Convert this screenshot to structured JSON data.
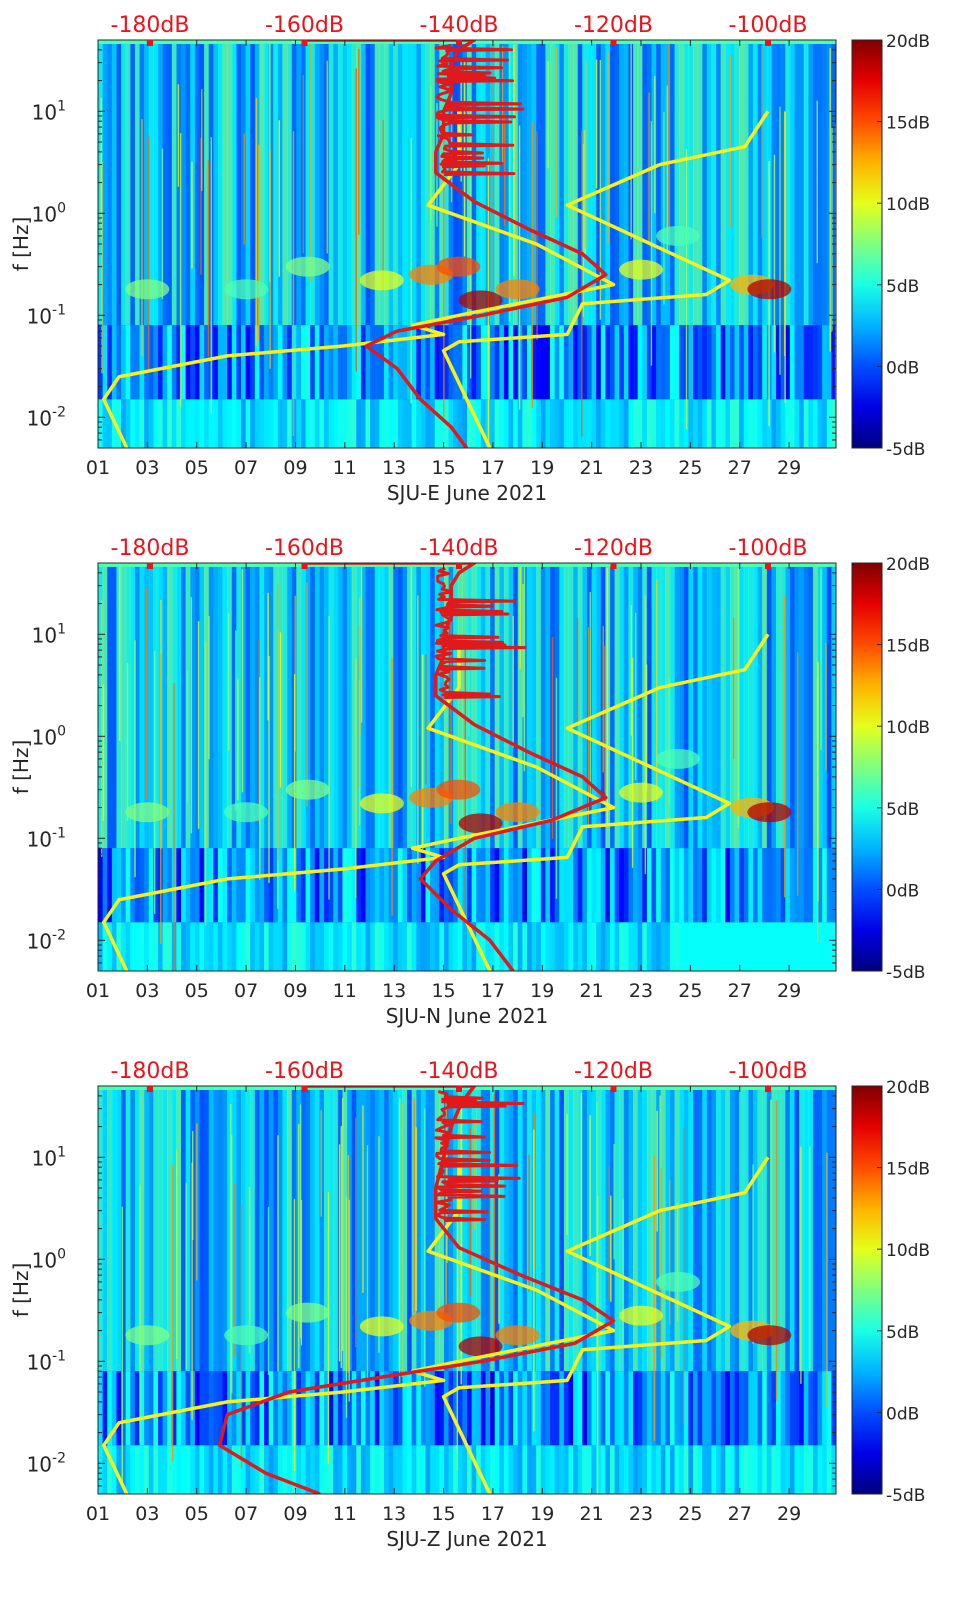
{
  "figure": {
    "description_free": true
  },
  "chart_data": [
    {
      "type": "heatmap",
      "station": "SJU-E",
      "xlabel": "SJU-E June 2021",
      "ylabel": "f [Hz]",
      "x_ticks": [
        "01",
        "03",
        "05",
        "07",
        "09",
        "11",
        "13",
        "15",
        "17",
        "19",
        "21",
        "23",
        "25",
        "27",
        "29"
      ],
      "x_range_days": [
        1,
        30.9
      ],
      "y_scale": "log",
      "y_range_hz": [
        0.005,
        50
      ],
      "y_ticks": [
        {
          "value": 0.01,
          "base": "10",
          "exp": "-2"
        },
        {
          "value": 0.1,
          "base": "10",
          "exp": "-1"
        },
        {
          "value": 1,
          "base": "10",
          "exp": "0"
        },
        {
          "value": 10,
          "base": "10",
          "exp": "1"
        }
      ],
      "top_axis_labels": [
        "-180dB",
        "-160dB",
        "-140dB",
        "-120dB",
        "-100dB"
      ],
      "top_axis_color": "#e8141b",
      "colorbar_labels": [
        "20dB",
        "15dB",
        "10dB",
        "5dB",
        "0dB",
        "-5dB"
      ],
      "colorbar_range_db": [
        -5,
        20
      ],
      "yellow_curve": {
        "name": "noise model bounds",
        "color": "#f5f01e",
        "low_model": [
          [
            -140,
            10
          ],
          [
            -140,
            3
          ],
          [
            -144,
            1.2
          ],
          [
            -130,
            0.5
          ],
          [
            -120,
            0.2
          ],
          [
            -140,
            0.1
          ],
          [
            -146,
            0.08
          ],
          [
            -142,
            0.065
          ],
          [
            -155,
            0.05
          ],
          [
            -170,
            0.04
          ],
          [
            -184,
            0.025
          ],
          [
            -186,
            0.015
          ],
          [
            -183,
            0.005
          ]
        ],
        "high_model": [
          [
            -100,
            10
          ],
          [
            -103,
            4.5
          ],
          [
            -114,
            3
          ],
          [
            -126,
            1.2
          ],
          [
            -105,
            0.22
          ],
          [
            -108,
            0.16
          ],
          [
            -124,
            0.13
          ],
          [
            -126,
            0.065
          ],
          [
            -140,
            0.055
          ],
          [
            -142,
            0.045
          ],
          [
            -136,
            0.005
          ]
        ]
      },
      "red_curve": {
        "name": "median PSD",
        "color": "#e0191c",
        "points": [
          [
            -160,
            50
          ],
          [
            -138,
            50
          ],
          [
            -140,
            40
          ],
          [
            -141,
            30
          ],
          [
            -141,
            20
          ],
          [
            -141,
            15
          ],
          [
            -142,
            10
          ],
          [
            -142,
            6
          ],
          [
            -143,
            4
          ],
          [
            -143,
            2.5
          ],
          [
            -138,
            1.3
          ],
          [
            -131,
            0.7
          ],
          [
            -124,
            0.4
          ],
          [
            -121,
            0.25
          ],
          [
            -126,
            0.15
          ],
          [
            -137,
            0.1
          ],
          [
            -148,
            0.07
          ],
          [
            -152,
            0.05
          ],
          [
            -148,
            0.03
          ],
          [
            -145,
            0.015
          ],
          [
            -141,
            0.008
          ],
          [
            -139,
            0.005
          ]
        ]
      }
    },
    {
      "type": "heatmap",
      "station": "SJU-N",
      "xlabel": "SJU-N June 2021",
      "ylabel": "f [Hz]",
      "x_ticks": [
        "01",
        "03",
        "05",
        "07",
        "09",
        "11",
        "13",
        "15",
        "17",
        "19",
        "21",
        "23",
        "25",
        "27",
        "29"
      ],
      "x_range_days": [
        1,
        30.9
      ],
      "y_scale": "log",
      "y_range_hz": [
        0.005,
        50
      ],
      "y_ticks": [
        {
          "value": 0.01,
          "base": "10",
          "exp": "-2"
        },
        {
          "value": 0.1,
          "base": "10",
          "exp": "-1"
        },
        {
          "value": 1,
          "base": "10",
          "exp": "0"
        },
        {
          "value": 10,
          "base": "10",
          "exp": "1"
        }
      ],
      "top_axis_labels": [
        "-180dB",
        "-160dB",
        "-140dB",
        "-120dB",
        "-100dB"
      ],
      "top_axis_color": "#e8141b",
      "colorbar_labels": [
        "20dB",
        "15dB",
        "10dB",
        "5dB",
        "0dB",
        "-5dB"
      ],
      "colorbar_range_db": [
        -5,
        20
      ],
      "yellow_curve": {
        "name": "noise model bounds",
        "color": "#f5f01e",
        "low_model": [
          [
            -140,
            10
          ],
          [
            -140,
            3
          ],
          [
            -144,
            1.2
          ],
          [
            -130,
            0.5
          ],
          [
            -120,
            0.2
          ],
          [
            -140,
            0.1
          ],
          [
            -146,
            0.08
          ],
          [
            -142,
            0.065
          ],
          [
            -155,
            0.05
          ],
          [
            -170,
            0.04
          ],
          [
            -184,
            0.025
          ],
          [
            -186,
            0.015
          ],
          [
            -183,
            0.005
          ]
        ],
        "high_model": [
          [
            -100,
            10
          ],
          [
            -103,
            4.5
          ],
          [
            -114,
            3
          ],
          [
            -126,
            1.2
          ],
          [
            -105,
            0.22
          ],
          [
            -108,
            0.16
          ],
          [
            -124,
            0.13
          ],
          [
            -126,
            0.065
          ],
          [
            -140,
            0.055
          ],
          [
            -142,
            0.045
          ],
          [
            -136,
            0.005
          ]
        ]
      },
      "red_curve": {
        "name": "median PSD",
        "color": "#e0191c",
        "points": [
          [
            -160,
            50
          ],
          [
            -138,
            50
          ],
          [
            -140,
            40
          ],
          [
            -141,
            30
          ],
          [
            -141,
            20
          ],
          [
            -141,
            15
          ],
          [
            -142,
            10
          ],
          [
            -142,
            6
          ],
          [
            -143,
            4
          ],
          [
            -143,
            2.5
          ],
          [
            -138,
            1.3
          ],
          [
            -131,
            0.7
          ],
          [
            -124,
            0.4
          ],
          [
            -121,
            0.25
          ],
          [
            -128,
            0.15
          ],
          [
            -138,
            0.1
          ],
          [
            -143,
            0.06
          ],
          [
            -145,
            0.04
          ],
          [
            -141,
            0.02
          ],
          [
            -136,
            0.01
          ],
          [
            -133,
            0.005
          ]
        ]
      }
    },
    {
      "type": "heatmap",
      "station": "SJU-Z",
      "xlabel": "SJU-Z June 2021",
      "ylabel": "f [Hz]",
      "x_ticks": [
        "01",
        "03",
        "05",
        "07",
        "09",
        "11",
        "13",
        "15",
        "17",
        "19",
        "21",
        "23",
        "25",
        "27",
        "29"
      ],
      "x_range_days": [
        1,
        30.9
      ],
      "y_scale": "log",
      "y_range_hz": [
        0.005,
        50
      ],
      "y_ticks": [
        {
          "value": 0.01,
          "base": "10",
          "exp": "-2"
        },
        {
          "value": 0.1,
          "base": "10",
          "exp": "-1"
        },
        {
          "value": 1,
          "base": "10",
          "exp": "0"
        },
        {
          "value": 10,
          "base": "10",
          "exp": "1"
        }
      ],
      "top_axis_labels": [
        "-180dB",
        "-160dB",
        "-140dB",
        "-120dB",
        "-100dB"
      ],
      "top_axis_color": "#e8141b",
      "colorbar_labels": [
        "20dB",
        "15dB",
        "10dB",
        "5dB",
        "0dB",
        "-5dB"
      ],
      "colorbar_range_db": [
        -5,
        20
      ],
      "yellow_curve": {
        "name": "noise model bounds",
        "color": "#f5f01e",
        "low_model": [
          [
            -140,
            10
          ],
          [
            -140,
            3
          ],
          [
            -144,
            1.2
          ],
          [
            -130,
            0.5
          ],
          [
            -120,
            0.2
          ],
          [
            -140,
            0.1
          ],
          [
            -146,
            0.08
          ],
          [
            -142,
            0.065
          ],
          [
            -155,
            0.05
          ],
          [
            -170,
            0.04
          ],
          [
            -184,
            0.025
          ],
          [
            -186,
            0.015
          ],
          [
            -183,
            0.005
          ]
        ],
        "high_model": [
          [
            -100,
            10
          ],
          [
            -103,
            4.5
          ],
          [
            -114,
            3
          ],
          [
            -126,
            1.2
          ],
          [
            -105,
            0.22
          ],
          [
            -108,
            0.16
          ],
          [
            -124,
            0.13
          ],
          [
            -126,
            0.065
          ],
          [
            -140,
            0.055
          ],
          [
            -142,
            0.045
          ],
          [
            -136,
            0.005
          ]
        ]
      },
      "red_curve": {
        "name": "median PSD",
        "color": "#e0191c",
        "points": [
          [
            -160,
            50
          ],
          [
            -138,
            50
          ],
          [
            -139,
            40
          ],
          [
            -140,
            30
          ],
          [
            -141,
            20
          ],
          [
            -142,
            10
          ],
          [
            -143,
            5
          ],
          [
            -143,
            2.5
          ],
          [
            -140,
            1.3
          ],
          [
            -132,
            0.7
          ],
          [
            -124,
            0.4
          ],
          [
            -120,
            0.25
          ],
          [
            -125,
            0.15
          ],
          [
            -137,
            0.1
          ],
          [
            -150,
            0.07
          ],
          [
            -162,
            0.05
          ],
          [
            -170,
            0.03
          ],
          [
            -171,
            0.015
          ],
          [
            -165,
            0.008
          ],
          [
            -158,
            0.005
          ]
        ]
      }
    }
  ]
}
